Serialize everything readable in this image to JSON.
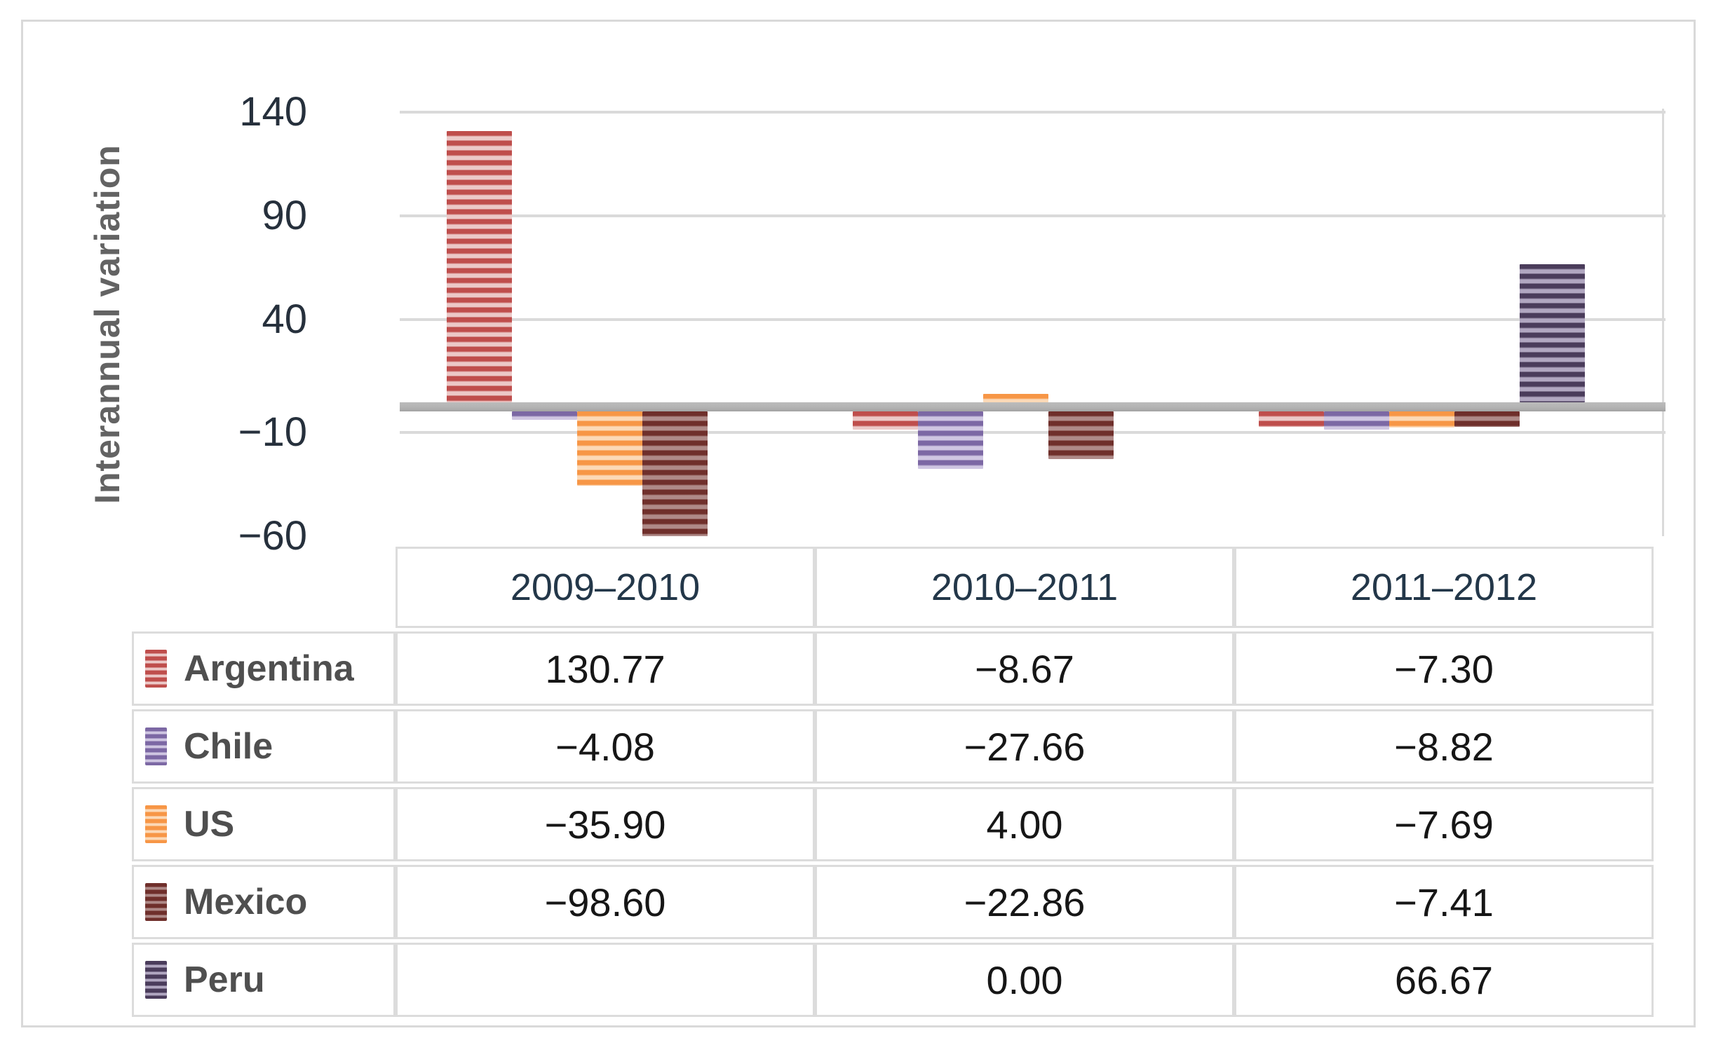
{
  "chart": {
    "y_axis_title": "Interannual variation",
    "ticks": [
      {
        "label": "140",
        "value": 140,
        "gridline": true
      },
      {
        "label": "90",
        "value": 90,
        "gridline": true
      },
      {
        "label": "40",
        "value": 40,
        "gridline": true
      },
      {
        "label": "−10",
        "value": -10,
        "gridline": true
      },
      {
        "label": "−60",
        "value": -60,
        "gridline": false
      }
    ]
  },
  "chart_data": {
    "type": "bar",
    "title": "",
    "xlabel": "",
    "ylabel": "Interannual variation",
    "categories": [
      "2009–2010",
      "2010–2011",
      "2011–2012"
    ],
    "series": [
      {
        "name": "Argentina",
        "color_dark": "#bf4e4c",
        "color_light": "#ecc9c8",
        "values": [
          130.77,
          -8.67,
          -7.3
        ]
      },
      {
        "name": "Chile",
        "color_dark": "#7c68a4",
        "color_light": "#cfc6e2",
        "values": [
          -4.08,
          -27.66,
          -8.82
        ]
      },
      {
        "name": "US",
        "color_dark": "#f79646",
        "color_light": "#fcd9b7",
        "values": [
          -35.9,
          4.0,
          -7.69
        ]
      },
      {
        "name": "Mexico",
        "color_dark": "#6f2f2b",
        "color_light": "#af8a88",
        "values": [
          -98.6,
          -22.86,
          -7.41
        ]
      },
      {
        "name": "Peru",
        "color_dark": "#4a3c5b",
        "color_light": "#b1a7c1",
        "values": [
          null,
          0.0,
          66.67
        ]
      }
    ],
    "ylim": [
      -63,
      162
    ],
    "gridlines": [
      140,
      90,
      40,
      -10
    ],
    "grid": true,
    "legend_position": "table-left-column",
    "note_clipping": "Mexico 2009–2010 bar (−98.60) is clipped at the bottom of the plot area"
  },
  "table": {
    "column_headers": [
      "2009–2010",
      "2010–2011",
      "2011–2012"
    ],
    "rows": [
      {
        "label": "Argentina",
        "cells": [
          "130.77",
          "−8.67",
          "−7.30"
        ]
      },
      {
        "label": "Chile",
        "cells": [
          "−4.08",
          "−27.66",
          "−8.82"
        ]
      },
      {
        "label": "US",
        "cells": [
          "−35.90",
          "4.00",
          "−7.69"
        ]
      },
      {
        "label": "Mexico",
        "cells": [
          "−98.60",
          "−22.86",
          "−7.41"
        ]
      },
      {
        "label": "Peru",
        "cells": [
          "",
          "0.00",
          "66.67"
        ]
      }
    ]
  },
  "colors": {
    "background": "#ffffff",
    "card_border": "#d9d9d9",
    "gridline": "#dadada",
    "baseline": "#b3b3b3",
    "tick_text": "#26303c",
    "year_header_text": "#233749",
    "cell_text": "#161616",
    "legend_text": "#4f4f4f",
    "axis_title_text": "#636363"
  }
}
